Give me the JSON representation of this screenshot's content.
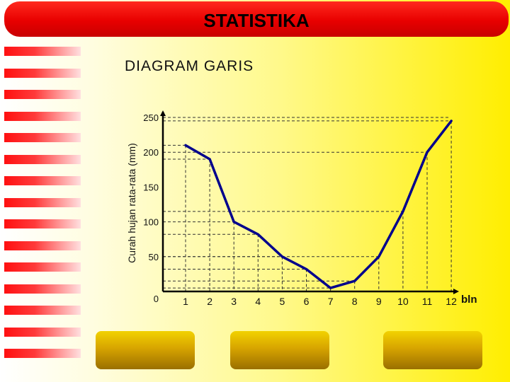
{
  "header": {
    "title": "STATISTIKA"
  },
  "subtitle": "DIAGRAM GARIS",
  "colors": {
    "header": "#e80000",
    "line": "#00008c",
    "stripe": "#ff2020",
    "button": "#d7a400"
  },
  "chart_data": {
    "type": "line",
    "title": "",
    "ylabel": "Curah hujan rata-rata (mm)",
    "xlabel": "bln",
    "x": [
      1,
      2,
      3,
      4,
      5,
      6,
      7,
      8,
      9,
      10,
      11,
      12
    ],
    "x_ticks": [
      "1",
      "2",
      "3",
      "4",
      "5",
      "6",
      "7",
      "8",
      "9",
      "10",
      "11",
      "12"
    ],
    "y_ticks": [
      "0",
      "50",
      "100",
      "150",
      "200",
      "250"
    ],
    "series": [
      {
        "values": [
          210,
          190,
          100,
          82,
          50,
          32,
          5,
          15,
          50,
          115,
          200,
          245
        ]
      }
    ],
    "ylim": [
      0,
      250
    ],
    "grid": "dashed guide lines from each point to both axes"
  },
  "buttons": [
    {
      "name": "button-left"
    },
    {
      "name": "button-center"
    },
    {
      "name": "button-right"
    }
  ]
}
